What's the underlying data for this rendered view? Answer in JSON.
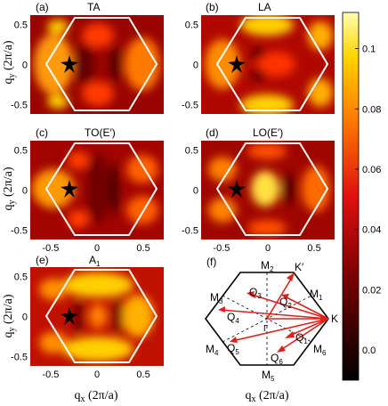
{
  "figure": {
    "ylabel": "q",
    "ylabel_sub": "y",
    "ylabel_unit": " (2π/a)",
    "xlabel": "q",
    "xlabel_sub": "x",
    "xlabel_unit": " (2π/a)",
    "colors": {
      "hexagon": "#ffffff",
      "arrow": "#e0201c",
      "bz": "#000000"
    }
  },
  "chart_data": [
    {
      "type": "heatmap",
      "panel": "(a)",
      "title": "TA",
      "x_ticks": [
        "-0.5",
        "0",
        "0.5"
      ],
      "y_ticks": [
        "0.5",
        "0",
        "-0.5"
      ],
      "xlim": [
        -0.72,
        0.72
      ],
      "ylim": [
        -0.62,
        0.62
      ]
    },
    {
      "type": "heatmap",
      "panel": "(b)",
      "title": "LA",
      "x_ticks": [
        "-0.5",
        "0",
        "0.5"
      ],
      "y_ticks": [
        "0.5",
        "0",
        "-0.5"
      ],
      "xlim": [
        -0.72,
        0.72
      ],
      "ylim": [
        -0.62,
        0.62
      ]
    },
    {
      "type": "heatmap",
      "panel": "(c)",
      "title": "TO(E′)",
      "x_ticks": [
        "-0.5",
        "0",
        "0.5"
      ],
      "y_ticks": [
        "0.5",
        "0",
        "-0.5"
      ],
      "xlim": [
        -0.72,
        0.72
      ],
      "ylim": [
        -0.62,
        0.62
      ]
    },
    {
      "type": "heatmap",
      "panel": "(d)",
      "title": "LO(E′)",
      "x_ticks": [
        "-0.5",
        "0",
        "0.5"
      ],
      "y_ticks": [
        "0.5",
        "0",
        "-0.5"
      ],
      "xlim": [
        -0.72,
        0.72
      ],
      "ylim": [
        -0.62,
        0.62
      ]
    },
    {
      "type": "heatmap",
      "panel": "(e)",
      "title": "A",
      "title_sub": "1",
      "x_ticks": [
        "-0.5",
        "0",
        "0.5"
      ],
      "y_ticks": [
        "0.5",
        "0",
        "-0.5"
      ],
      "xlim": [
        -0.72,
        0.72
      ],
      "ylim": [
        -0.62,
        0.62
      ]
    }
  ],
  "colorbar": {
    "ticks": [
      "0.1",
      "0.08",
      "0.06",
      "0.04",
      "0.02",
      "0.0"
    ],
    "values": [
      0.1,
      0.08,
      0.06,
      0.04,
      0.02,
      0.0
    ],
    "range": [
      -0.01,
      0.112
    ]
  },
  "bz_diagram": {
    "panel": "(f)",
    "labels": {
      "M1": {
        "main": "M",
        "sub": "1"
      },
      "M2": {
        "main": "M",
        "sub": "2"
      },
      "M3": {
        "main": "M",
        "sub": "3"
      },
      "M4": {
        "main": "M",
        "sub": "4"
      },
      "M5": {
        "main": "M",
        "sub": "5"
      },
      "M6": {
        "main": "M",
        "sub": "6"
      },
      "K": {
        "main": "K",
        "sub": ""
      },
      "Kp": {
        "main": "K′",
        "sub": ""
      },
      "Gamma": {
        "main": "Γ",
        "sub": ""
      },
      "Q1": {
        "main": "Q",
        "sub": "1"
      },
      "Q2": {
        "main": "Q",
        "sub": "2"
      },
      "Q3": {
        "main": "Q",
        "sub": "3"
      },
      "Q4": {
        "main": "Q",
        "sub": "4"
      },
      "Q5": {
        "main": "Q",
        "sub": "5"
      },
      "Q6": {
        "main": "Q",
        "sub": "6"
      }
    }
  }
}
